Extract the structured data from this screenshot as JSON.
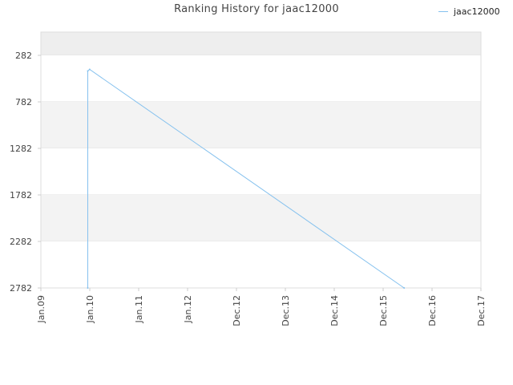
{
  "chart_data": {
    "type": "line",
    "title": "Ranking History for jaac12000",
    "xlabel": "",
    "ylabel": "",
    "x_tick_labels": [
      "Jan.09",
      "Jan.10",
      "Jan.11",
      "Jan.12",
      "Dec.12",
      "Dec.13",
      "Dec.14",
      "Dec.15",
      "Dec.16",
      "Dec.17"
    ],
    "y_tick_labels": [
      "282",
      "782",
      "1282",
      "1782",
      "2282",
      "2782"
    ],
    "ylim": [
      2782,
      32
    ],
    "y_inverted": true,
    "grid": "horizontal alternating bands",
    "legend_position": "top-right",
    "series": [
      {
        "name": "jaac12000",
        "color": "#85c1ee",
        "points": [
          {
            "x": "2009-12-17",
            "y": 2782
          },
          {
            "x": "2009-12-17",
            "y": 450
          },
          {
            "x": "2009-12-31",
            "y": 433
          },
          {
            "x": "2016-05-06",
            "y": 2782
          }
        ]
      }
    ]
  }
}
